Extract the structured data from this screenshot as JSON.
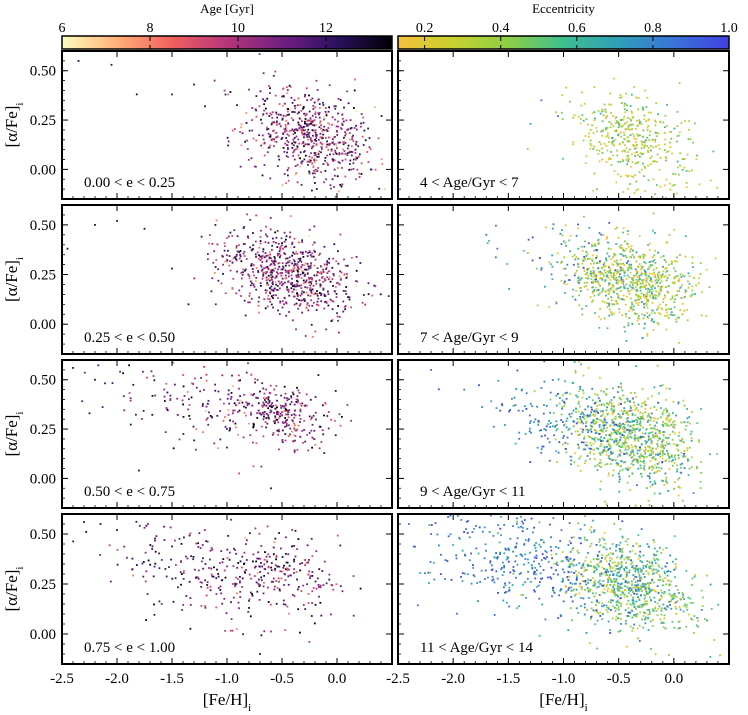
{
  "chart_data": {
    "type": "scatter",
    "xlabel_base": "[Fe/H]",
    "ylabel_base": "[α/Fe]",
    "label_sub": "i",
    "x_ticks": [
      "-2.5",
      "-2.0",
      "-1.5",
      "-1.0",
      "-0.5",
      "0.0"
    ],
    "y_ticks": [
      "0.00",
      "0.25",
      "0.50"
    ],
    "xlim": [
      -2.5,
      0.5
    ],
    "ylim": [
      -0.15,
      0.6
    ],
    "colorbars": [
      {
        "label": "Age [Gyr]",
        "range": [
          6,
          13.5
        ],
        "ticks": [
          "6",
          "8",
          "10",
          "12"
        ],
        "tick_values": [
          6,
          8,
          10,
          12
        ],
        "cmap": [
          "#fcfdbf",
          "#feb078",
          "#f1605d",
          "#b5367a",
          "#721f81",
          "#2c115f",
          "#000004"
        ]
      },
      {
        "label": "Eccentricity",
        "range": [
          0.13,
          1.0
        ],
        "ticks": [
          "0.2",
          "0.4",
          "0.6",
          "0.8",
          "1.0"
        ],
        "tick_values": [
          0.2,
          0.4,
          0.6,
          0.8,
          1.0
        ],
        "cmap": [
          "#f3c13a",
          "#c8d02f",
          "#8ccf45",
          "#3fbf8d",
          "#2e9fb8",
          "#3a74d8",
          "#4040e0"
        ]
      }
    ],
    "panels": [
      {
        "label": "0.00 < e < 0.25",
        "col": "left",
        "row": 0,
        "color_by": "age",
        "clusters": [
          {
            "cx": -0.25,
            "cy": 0.17,
            "sx": 0.3,
            "sy": 0.12,
            "n": 650,
            "color_mean": 10.5,
            "color_sd": 1.6
          }
        ],
        "outliers": [
          {
            "x": -2.35,
            "y": 0.55
          },
          {
            "x": -2.05,
            "y": 0.53
          },
          {
            "x": -1.82,
            "y": 0.38
          },
          {
            "x": -1.5,
            "y": 0.38
          },
          {
            "x": -1.3,
            "y": 0.43
          },
          {
            "x": -1.2,
            "y": 0.32
          }
        ]
      },
      {
        "label": "0.25 < e < 0.50",
        "col": "left",
        "row": 1,
        "color_by": "age",
        "clusters": [
          {
            "cx": -0.45,
            "cy": 0.26,
            "sx": 0.32,
            "sy": 0.1,
            "n": 700,
            "color_mean": 10.8,
            "color_sd": 1.5
          }
        ],
        "outliers": [
          {
            "x": -2.45,
            "y": 0.38
          },
          {
            "x": -2.2,
            "y": 0.5
          },
          {
            "x": -2.0,
            "y": 0.52
          },
          {
            "x": -1.75,
            "y": 0.48
          },
          {
            "x": -1.5,
            "y": 0.28
          },
          {
            "x": -1.35,
            "y": 0.1
          }
        ]
      },
      {
        "label": "0.50 < e < 0.75",
        "col": "left",
        "row": 2,
        "color_by": "age",
        "clusters": [
          {
            "cx": -0.5,
            "cy": 0.33,
            "sx": 0.25,
            "sy": 0.08,
            "n": 260,
            "color_mean": 10.6,
            "color_sd": 1.6
          },
          {
            "cx": -1.1,
            "cy": 0.35,
            "sx": 0.55,
            "sy": 0.12,
            "n": 170,
            "color_mean": 11.0,
            "color_sd": 1.5
          }
        ],
        "outliers": [
          {
            "x": -2.4,
            "y": 0.56
          },
          {
            "x": -2.2,
            "y": 0.5
          },
          {
            "x": -2.25,
            "y": 0.33
          },
          {
            "x": -1.8,
            "y": 0.04
          },
          {
            "x": -0.6,
            "y": -0.05
          }
        ]
      },
      {
        "label": "0.75 < e < 1.00",
        "col": "left",
        "row": 3,
        "color_by": "age",
        "clusters": [
          {
            "cx": -0.45,
            "cy": 0.32,
            "sx": 0.25,
            "sy": 0.08,
            "n": 150,
            "color_mean": 10.8,
            "color_sd": 1.5
          },
          {
            "cx": -1.15,
            "cy": 0.3,
            "sx": 0.5,
            "sy": 0.1,
            "n": 260,
            "color_mean": 11.2,
            "color_sd": 1.4
          }
        ],
        "outliers": [
          {
            "x": -2.3,
            "y": 0.56
          },
          {
            "x": -2.15,
            "y": 0.55
          },
          {
            "x": -2.0,
            "y": 0.52
          },
          {
            "x": -0.7,
            "y": -0.1
          }
        ]
      },
      {
        "label": "4 < Age/Gyr < 7",
        "col": "right",
        "row": 0,
        "color_by": "ecc",
        "clusters": [
          {
            "cx": -0.35,
            "cy": 0.15,
            "sx": 0.27,
            "sy": 0.11,
            "n": 420,
            "color_mean": 0.32,
            "color_sd": 0.15
          }
        ],
        "outliers": [
          {
            "x": -1.2,
            "y": 0.35
          },
          {
            "x": -1.05,
            "y": 0.27
          }
        ]
      },
      {
        "label": "7 < Age/Gyr < 9",
        "col": "right",
        "row": 1,
        "color_by": "ecc",
        "clusters": [
          {
            "cx": -0.4,
            "cy": 0.22,
            "sx": 0.3,
            "sy": 0.11,
            "n": 800,
            "color_mean": 0.38,
            "color_sd": 0.2
          },
          {
            "cx": -0.95,
            "cy": 0.28,
            "sx": 0.3,
            "sy": 0.1,
            "n": 60,
            "color_mean": 0.8,
            "color_sd": 0.15
          }
        ],
        "outliers": [
          {
            "x": -1.7,
            "y": 0.45
          },
          {
            "x": -1.6,
            "y": 0.38
          }
        ]
      },
      {
        "label": "9 < Age/Gyr < 11",
        "col": "right",
        "row": 2,
        "color_by": "ecc",
        "clusters": [
          {
            "cx": -0.4,
            "cy": 0.22,
            "sx": 0.3,
            "sy": 0.12,
            "n": 950,
            "color_mean": 0.45,
            "color_sd": 0.2
          },
          {
            "cx": -1.05,
            "cy": 0.3,
            "sx": 0.35,
            "sy": 0.1,
            "n": 160,
            "color_mean": 0.82,
            "color_sd": 0.12
          }
        ],
        "outliers": [
          {
            "x": -2.2,
            "y": 0.55
          },
          {
            "x": -1.9,
            "y": 0.45
          }
        ]
      },
      {
        "label": "11 < Age/Gyr < 14",
        "col": "right",
        "row": 3,
        "color_by": "ecc",
        "clusters": [
          {
            "cx": -0.4,
            "cy": 0.25,
            "sx": 0.3,
            "sy": 0.11,
            "n": 800,
            "color_mean": 0.5,
            "color_sd": 0.2
          },
          {
            "cx": -1.3,
            "cy": 0.35,
            "sx": 0.5,
            "sy": 0.12,
            "n": 380,
            "color_mean": 0.82,
            "color_sd": 0.13
          }
        ],
        "outliers": [
          {
            "x": -2.4,
            "y": 0.55
          },
          {
            "x": -2.2,
            "y": 0.5
          }
        ]
      }
    ]
  }
}
